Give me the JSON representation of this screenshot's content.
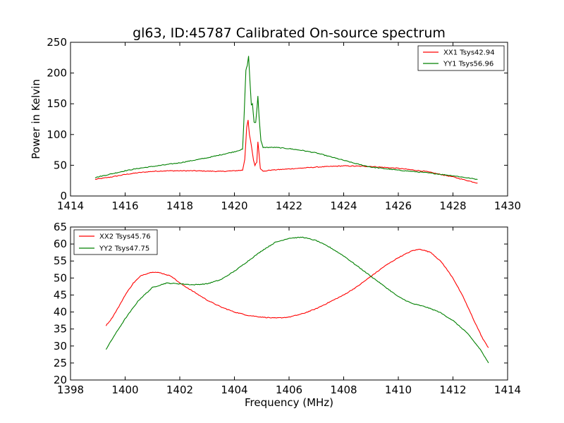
{
  "chart_data": [
    {
      "type": "line",
      "title": "gl63, ID:45787 Calibrated On-source spectrum",
      "xlabel": "",
      "ylabel": "Power in Kelvin",
      "xlim": [
        1414,
        1430
      ],
      "ylim": [
        0,
        250
      ],
      "xticks": [
        1414,
        1416,
        1418,
        1420,
        1422,
        1424,
        1426,
        1428,
        1430
      ],
      "yticks": [
        0,
        50,
        100,
        150,
        200,
        250
      ],
      "grid": false,
      "legend": "top-right",
      "series": [
        {
          "name": "XX1 Tsys42.94",
          "color": "#ff0000",
          "points": [
            [
              1414.9,
              27
            ],
            [
              1415.5,
              31
            ],
            [
              1416,
              35
            ],
            [
              1416.5,
              38
            ],
            [
              1417,
              40
            ],
            [
              1417.5,
              41
            ],
            [
              1418,
              41
            ],
            [
              1418.5,
              41
            ],
            [
              1419,
              40.5
            ],
            [
              1419.5,
              40
            ],
            [
              1420,
              41
            ],
            [
              1420.3,
              42
            ],
            [
              1420.38,
              60
            ],
            [
              1420.45,
              112
            ],
            [
              1420.5,
              123
            ],
            [
              1420.55,
              100
            ],
            [
              1420.62,
              82
            ],
            [
              1420.7,
              58
            ],
            [
              1420.75,
              50
            ],
            [
              1420.82,
              55
            ],
            [
              1420.86,
              88
            ],
            [
              1420.9,
              70
            ],
            [
              1420.95,
              45
            ],
            [
              1421.05,
              40
            ],
            [
              1421.3,
              42
            ],
            [
              1422,
              44
            ],
            [
              1423,
              47
            ],
            [
              1424,
              49
            ],
            [
              1425,
              48
            ],
            [
              1426,
              45
            ],
            [
              1427,
              40
            ],
            [
              1428,
              31
            ],
            [
              1428.9,
              21
            ]
          ]
        },
        {
          "name": "YY1 Tsys56.96",
          "color": "#008000",
          "points": [
            [
              1414.9,
              30
            ],
            [
              1415.5,
              36
            ],
            [
              1416,
              41
            ],
            [
              1416.5,
              45
            ],
            [
              1417,
              48
            ],
            [
              1417.5,
              51
            ],
            [
              1418,
              54
            ],
            [
              1418.5,
              58
            ],
            [
              1419,
              62
            ],
            [
              1419.5,
              67
            ],
            [
              1420,
              72
            ],
            [
              1420.3,
              76
            ],
            [
              1420.36,
              135
            ],
            [
              1420.42,
              205
            ],
            [
              1420.47,
              212
            ],
            [
              1420.52,
              228
            ],
            [
              1420.57,
              185
            ],
            [
              1420.62,
              148
            ],
            [
              1420.66,
              150
            ],
            [
              1420.72,
              120
            ],
            [
              1420.78,
              120
            ],
            [
              1420.83,
              145
            ],
            [
              1420.86,
              163
            ],
            [
              1420.9,
              130
            ],
            [
              1420.97,
              90
            ],
            [
              1421.05,
              79
            ],
            [
              1421.5,
              79
            ],
            [
              1422,
              77
            ],
            [
              1422.5,
              74
            ],
            [
              1423,
              70
            ],
            [
              1423.5,
              64
            ],
            [
              1424,
              58
            ],
            [
              1424.5,
              52
            ],
            [
              1425,
              47
            ],
            [
              1426,
              42
            ],
            [
              1427,
              38
            ],
            [
              1428,
              33
            ],
            [
              1428.9,
              27
            ]
          ]
        }
      ]
    },
    {
      "type": "line",
      "title": "",
      "xlabel": "Frequency (MHz)",
      "ylabel": "",
      "xlim": [
        1398,
        1414
      ],
      "ylim": [
        20,
        65
      ],
      "xticks": [
        1398,
        1400,
        1402,
        1404,
        1406,
        1408,
        1410,
        1412,
        1414
      ],
      "yticks": [
        20,
        25,
        30,
        35,
        40,
        45,
        50,
        55,
        60,
        65
      ],
      "grid": false,
      "legend": "top-left",
      "series": [
        {
          "name": "XX2 Tsys45.76",
          "color": "#ff0000",
          "points": [
            [
              1399.3,
              36
            ],
            [
              1399.5,
              38
            ],
            [
              1399.8,
              42
            ],
            [
              1400,
              45
            ],
            [
              1400.3,
              48.5
            ],
            [
              1400.6,
              50.8
            ],
            [
              1401,
              51.8
            ],
            [
              1401.3,
              51.5
            ],
            [
              1401.7,
              50.5
            ],
            [
              1402,
              48.5
            ],
            [
              1402.5,
              46
            ],
            [
              1403,
              43.5
            ],
            [
              1403.5,
              41.5
            ],
            [
              1404,
              40
            ],
            [
              1404.5,
              39
            ],
            [
              1405,
              38.5
            ],
            [
              1405.5,
              38.2
            ],
            [
              1406,
              38.5
            ],
            [
              1406.5,
              39.5
            ],
            [
              1407,
              41
            ],
            [
              1407.5,
              43
            ],
            [
              1408,
              45
            ],
            [
              1408.5,
              47.5
            ],
            [
              1409,
              50.5
            ],
            [
              1409.5,
              53.5
            ],
            [
              1410,
              56
            ],
            [
              1410.5,
              58
            ],
            [
              1410.8,
              58.5
            ],
            [
              1411.2,
              57.5
            ],
            [
              1411.6,
              54.5
            ],
            [
              1412,
              50
            ],
            [
              1412.4,
              44
            ],
            [
              1412.8,
              37
            ],
            [
              1413.1,
              32
            ],
            [
              1413.3,
              29.5
            ]
          ]
        },
        {
          "name": "YY2 Tsys47.75",
          "color": "#008000",
          "points": [
            [
              1399.3,
              29
            ],
            [
              1399.6,
              33
            ],
            [
              1400,
              38
            ],
            [
              1400.5,
              43.5
            ],
            [
              1401,
              47.2
            ],
            [
              1401.5,
              48.5
            ],
            [
              1402,
              48.3
            ],
            [
              1402.5,
              48
            ],
            [
              1403,
              48.3
            ],
            [
              1403.5,
              49.5
            ],
            [
              1404,
              52
            ],
            [
              1404.5,
              55
            ],
            [
              1405,
              58
            ],
            [
              1405.5,
              60.5
            ],
            [
              1406,
              61.7
            ],
            [
              1406.5,
              62
            ],
            [
              1407,
              61
            ],
            [
              1407.5,
              59
            ],
            [
              1408,
              56.5
            ],
            [
              1408.5,
              53.5
            ],
            [
              1409,
              50.5
            ],
            [
              1409.5,
              47.5
            ],
            [
              1410,
              44.5
            ],
            [
              1410.5,
              42.5
            ],
            [
              1411,
              41.5
            ],
            [
              1411.5,
              40
            ],
            [
              1412,
              37.5
            ],
            [
              1412.5,
              34
            ],
            [
              1413,
              29
            ],
            [
              1413.3,
              25
            ]
          ]
        }
      ]
    }
  ]
}
